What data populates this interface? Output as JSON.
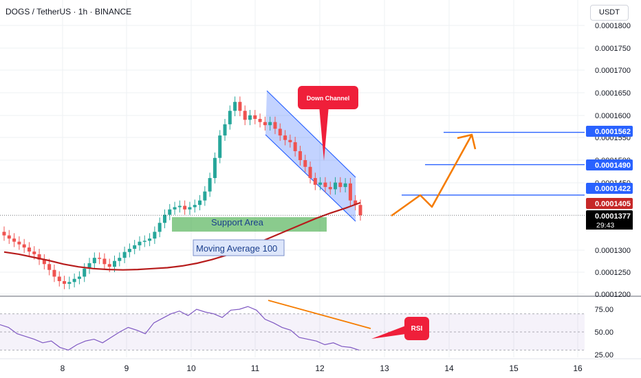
{
  "header": {
    "title": "DOGS / TetherUS · 1h · BINANCE",
    "currency_button": "USDT"
  },
  "price_axis": {
    "ticks": [
      "0.0001800",
      "0.0001750",
      "0.0001700",
      "0.0001650",
      "0.0001600",
      "0.0001550",
      "0.0001500",
      "0.0001450",
      "0.0001300",
      "0.0001250",
      "0.0001200"
    ],
    "badges": [
      {
        "value": "0.0001562",
        "color": "#2962ff"
      },
      {
        "value": "0.0001490",
        "color": "#2962ff"
      },
      {
        "value": "0.0001422",
        "color": "#2962ff"
      },
      {
        "value": "0.0001405",
        "color": "#c62828"
      },
      {
        "value": "0.0001377",
        "color": "#000000"
      }
    ],
    "countdown": "29:43"
  },
  "rsi_axis": {
    "ticks": [
      "75.00",
      "50.00",
      "25.00"
    ]
  },
  "time_axis": {
    "ticks": [
      "8",
      "9",
      "10",
      "11",
      "12",
      "13",
      "14",
      "15",
      "16"
    ]
  },
  "annotations": {
    "down_channel": "Down Channel",
    "support_area": "Support Area",
    "moving_average": "Moving Average 100",
    "rsi": "RSI"
  },
  "colors": {
    "up": "#26a69a",
    "down": "#ef5350",
    "ma": "#b71c1c",
    "channel": "#2962ff",
    "projection": "#f57c00",
    "support": "#4caf50",
    "rsi_line": "#7e57c2"
  },
  "chart_data": {
    "type": "candlestick",
    "symbol": "DOGS / TetherUS",
    "interval": "1h",
    "exchange": "BINANCE",
    "x_ticks": [
      "8",
      "9",
      "10",
      "11",
      "12",
      "13",
      "14",
      "15",
      "16"
    ],
    "ylim": [
      0.00012,
      0.000181
    ],
    "series": [
      {
        "name": "price",
        "values": [
          0.0001332,
          0.0001325,
          0.0001318,
          0.0001312,
          0.0001305,
          0.0001296,
          0.000129,
          0.0001278,
          0.0001268,
          0.0001255,
          0.000124,
          0.000123,
          0.0001224,
          0.0001228,
          0.0001235,
          0.000124,
          0.0001258,
          0.000127,
          0.0001282,
          0.000128,
          0.0001268,
          0.0001262,
          0.0001275,
          0.0001282,
          0.0001295,
          0.0001302,
          0.000131,
          0.0001318,
          0.000132,
          0.0001325,
          0.000134,
          0.000136,
          0.0001378,
          0.000139,
          0.0001395,
          0.0001398,
          0.000139,
          0.0001395,
          0.00014,
          0.000141,
          0.000143,
          0.000146,
          0.0001505,
          0.0001555,
          0.000158,
          0.000161,
          0.000163,
          0.000161,
          0.000159,
          0.00016,
          0.0001592,
          0.0001585,
          0.0001578,
          0.0001585,
          0.000157,
          0.0001555,
          0.0001545,
          0.000154,
          0.000152,
          0.00015,
          0.0001485,
          0.000146,
          0.0001445,
          0.000145,
          0.000144,
          0.0001435,
          0.000145,
          0.000144,
          0.0001448,
          0.000141,
          0.00014,
          0.0001377
        ]
      },
      {
        "name": "Moving Average 100",
        "values": [
          0.0001295,
          0.000129,
          0.0001283,
          0.0001276,
          0.0001268,
          0.0001262,
          0.0001258,
          0.0001256,
          0.0001255,
          0.0001256,
          0.0001258,
          0.000126,
          0.0001264,
          0.000127,
          0.0001278,
          0.0001288,
          0.00013,
          0.0001314,
          0.0001328,
          0.0001342,
          0.0001356,
          0.000137,
          0.0001382,
          0.0001393,
          0.0001405
        ]
      },
      {
        "name": "RSI",
        "values": [
          58,
          55,
          48,
          45,
          42,
          38,
          40,
          33,
          30,
          36,
          40,
          42,
          38,
          44,
          50,
          55,
          52,
          48,
          60,
          65,
          70,
          73,
          68,
          75,
          72,
          70,
          66,
          74,
          75,
          78,
          74,
          64,
          60,
          55,
          52,
          44,
          42,
          40,
          36,
          38,
          34,
          33,
          30
        ]
      }
    ],
    "rsi_ylim": [
      25,
      80
    ],
    "rsi_levels": [
      70,
      50,
      30
    ],
    "levels": [
      0.0001562,
      0.000149,
      0.0001422
    ],
    "last_price": 0.0001377,
    "ma_value": 0.0001405
  }
}
